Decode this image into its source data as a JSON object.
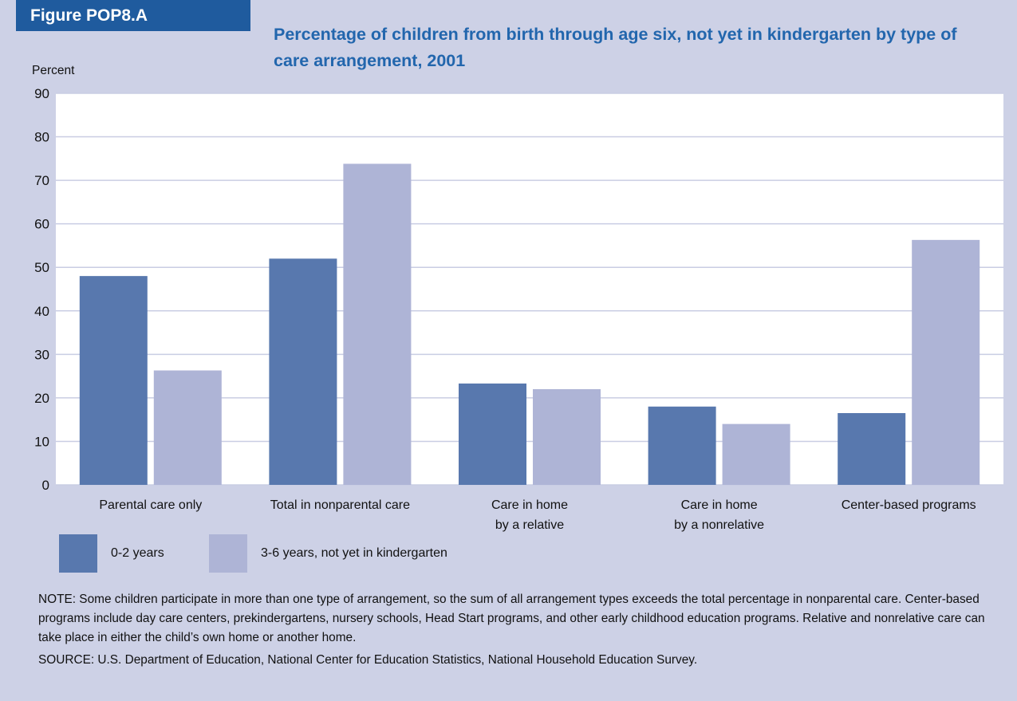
{
  "figure_label": "Figure POP8.A",
  "title": "Percentage of children from birth through age six, not yet in kindergarten by type of care arrangement, 2001",
  "colors": {
    "series1": "#5878ae",
    "series2": "#aeb4d6",
    "plot_bg": "#ffffff",
    "page_bg": "#cdd1e6",
    "title": "#2266ad",
    "label_bg": "#1f5b9e"
  },
  "chart_data": {
    "type": "bar",
    "ylabel": "Percent",
    "ylim": [
      0,
      90
    ],
    "yticks": [
      0,
      10,
      20,
      30,
      40,
      50,
      60,
      70,
      80,
      90
    ],
    "grid": true,
    "legend_position": "bottom-left",
    "categories": [
      [
        "Parental care only"
      ],
      [
        "Total in nonparental care"
      ],
      [
        "Care in home",
        "by a relative"
      ],
      [
        "Care in home",
        "by a nonrelative"
      ],
      [
        "Center-based programs"
      ]
    ],
    "series": [
      {
        "name": "0-2 years",
        "values": [
          48,
          52,
          23.3,
          18,
          16.5
        ]
      },
      {
        "name": "3-6 years, not yet in kindergarten",
        "values": [
          26.3,
          73.8,
          22,
          14,
          56.3
        ]
      }
    ]
  },
  "note": "NOTE:  Some children participate in more than one type of arrangement, so the sum of all arrangement types exceeds the total percentage in nonparental care. Center-based programs include day care centers, prekindergartens, nursery schools, Head Start programs, and other early childhood education programs.  Relative and nonrelative care can take place in either the child’s own home or another home.",
  "source": "SOURCE:  U.S. Department of Education, National Center for Education Statistics, National Household Education Survey."
}
